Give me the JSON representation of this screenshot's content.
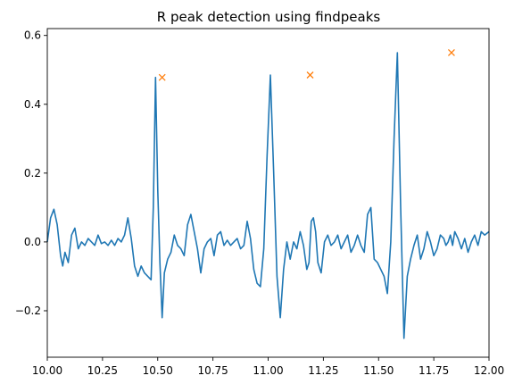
{
  "chart_data": {
    "type": "line",
    "title": "R peak detection using findpeaks",
    "xlabel": "",
    "ylabel": "",
    "xlim": [
      10.0,
      12.0
    ],
    "ylim": [
      -0.335,
      0.62
    ],
    "grid": false,
    "x_ticks": [
      10.0,
      10.25,
      10.5,
      10.75,
      11.0,
      11.25,
      11.5,
      11.75,
      12.0
    ],
    "x_tick_labels": [
      "10.00",
      "10.25",
      "10.50",
      "10.75",
      "11.00",
      "11.25",
      "11.50",
      "11.75",
      "12.00"
    ],
    "y_ticks": [
      -0.2,
      0.0,
      0.2,
      0.4,
      0.6
    ],
    "y_tick_labels": [
      "−0.2",
      "0.0",
      "0.2",
      "0.4",
      "0.6"
    ],
    "series": [
      {
        "kind": "line",
        "color": "#1f77b4",
        "x": [
          10.0,
          10.015,
          10.03,
          10.045,
          10.06,
          10.07,
          10.08,
          10.095,
          10.11,
          10.125,
          10.14,
          10.155,
          10.17,
          10.185,
          10.2,
          10.215,
          10.23,
          10.245,
          10.26,
          10.275,
          10.29,
          10.305,
          10.32,
          10.335,
          10.35,
          10.365,
          10.38,
          10.395,
          10.41,
          10.425,
          10.44,
          10.455,
          10.47,
          10.48,
          10.49,
          10.5,
          10.51,
          10.52,
          10.53,
          10.545,
          10.56,
          10.575,
          10.59,
          10.605,
          10.62,
          10.635,
          10.65,
          10.665,
          10.68,
          10.695,
          10.71,
          10.725,
          10.74,
          10.755,
          10.77,
          10.785,
          10.8,
          10.815,
          10.83,
          10.845,
          10.86,
          10.875,
          10.89,
          10.905,
          10.92,
          10.935,
          10.95,
          10.965,
          10.98,
          10.995,
          11.01,
          11.025,
          11.04,
          11.055,
          11.07,
          11.085,
          11.1,
          11.115,
          11.13,
          11.145,
          11.16,
          11.175,
          11.185,
          11.195,
          11.205,
          11.215,
          11.225,
          11.24,
          11.255,
          11.27,
          11.285,
          11.3,
          11.315,
          11.33,
          11.345,
          11.36,
          11.375,
          11.39,
          11.405,
          11.42,
          11.435,
          11.45,
          11.465,
          11.48,
          11.495,
          11.51,
          11.525,
          11.54,
          11.555,
          11.57,
          11.585,
          11.6,
          11.615,
          11.63,
          11.645,
          11.66,
          11.675,
          11.69,
          11.705,
          11.72,
          11.735,
          11.75,
          11.765,
          11.78,
          11.795,
          11.805,
          11.815,
          11.825,
          11.835,
          11.845,
          11.86,
          11.875,
          11.89,
          11.905,
          11.92,
          11.935,
          11.95,
          11.965,
          11.98,
          12.0
        ],
        "y": [
          0.0,
          0.07,
          0.095,
          0.05,
          -0.04,
          -0.07,
          -0.03,
          -0.06,
          0.02,
          0.04,
          -0.02,
          0.0,
          -0.01,
          0.01,
          0.0,
          -0.01,
          0.02,
          -0.005,
          0.0,
          -0.01,
          0.005,
          -0.01,
          0.01,
          0.0,
          0.02,
          0.07,
          0.01,
          -0.07,
          -0.1,
          -0.07,
          -0.09,
          -0.1,
          -0.11,
          0.1,
          0.478,
          0.15,
          -0.06,
          -0.22,
          -0.09,
          -0.05,
          -0.03,
          0.02,
          -0.01,
          -0.02,
          -0.04,
          0.05,
          0.08,
          0.03,
          -0.02,
          -0.09,
          -0.02,
          0.0,
          0.01,
          -0.04,
          0.02,
          0.03,
          -0.01,
          0.005,
          -0.01,
          0.0,
          0.01,
          -0.02,
          -0.01,
          0.06,
          0.01,
          -0.08,
          -0.12,
          -0.13,
          -0.02,
          0.25,
          0.485,
          0.2,
          -0.1,
          -0.22,
          -0.08,
          0.0,
          -0.05,
          0.0,
          -0.02,
          0.03,
          -0.01,
          -0.08,
          -0.06,
          0.06,
          0.07,
          0.03,
          -0.06,
          -0.09,
          0.0,
          0.02,
          -0.01,
          0.0,
          0.02,
          -0.02,
          0.0,
          0.02,
          -0.03,
          -0.01,
          0.02,
          -0.01,
          -0.03,
          0.08,
          0.1,
          -0.05,
          -0.06,
          -0.08,
          -0.1,
          -0.15,
          0.0,
          0.3,
          0.55,
          0.1,
          -0.28,
          -0.1,
          -0.05,
          -0.01,
          0.02,
          -0.05,
          -0.02,
          0.03,
          0.0,
          -0.04,
          -0.02,
          0.02,
          0.01,
          -0.01,
          0.0,
          0.02,
          -0.01,
          0.03,
          0.01,
          -0.02,
          0.01,
          -0.03,
          0.0,
          0.02,
          -0.01,
          0.03,
          0.02,
          0.03
        ]
      },
      {
        "kind": "markers",
        "marker": "x",
        "color": "#ff7f0e",
        "x": [
          10.52,
          11.19,
          11.83
        ],
        "y": [
          0.478,
          0.485,
          0.55
        ]
      }
    ]
  }
}
